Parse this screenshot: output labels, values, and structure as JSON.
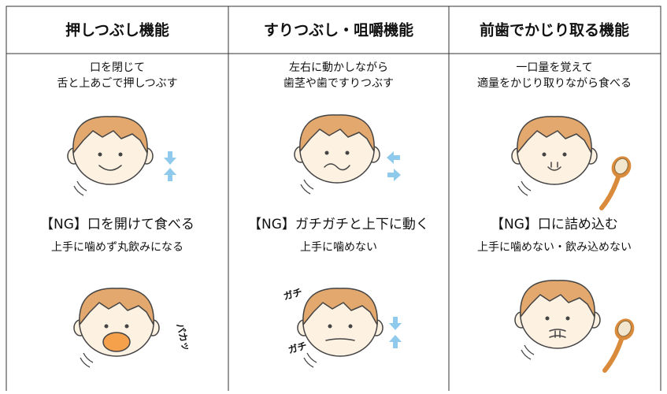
{
  "columns": [
    {
      "header": "押しつぶし機能",
      "description": [
        "口を閉じて",
        "舌と上あごで押しつぶす"
      ],
      "ng_title": "【NG】口を開けて食べる",
      "ng_description": "上手に噛めず丸飲みになる",
      "sounds": [
        "パカッ"
      ]
    },
    {
      "header": "すりつぶし・咀嚼機能",
      "description": [
        "左右に動かしながら",
        "歯茎や歯ですりつぶす"
      ],
      "ng_title": "【NG】ガチガチと上下に動く",
      "ng_description": "上手に噛めない",
      "sounds": [
        "ガチ",
        "ガチ"
      ]
    },
    {
      "header": "前歯でかじり取る機能",
      "description": [
        "一口量を覚えて",
        "適量をかじり取りながら食べる"
      ],
      "ng_title": "【NG】口に詰め込む",
      "ng_description": "上手に噛めない・飲み込めない",
      "sounds": []
    }
  ]
}
